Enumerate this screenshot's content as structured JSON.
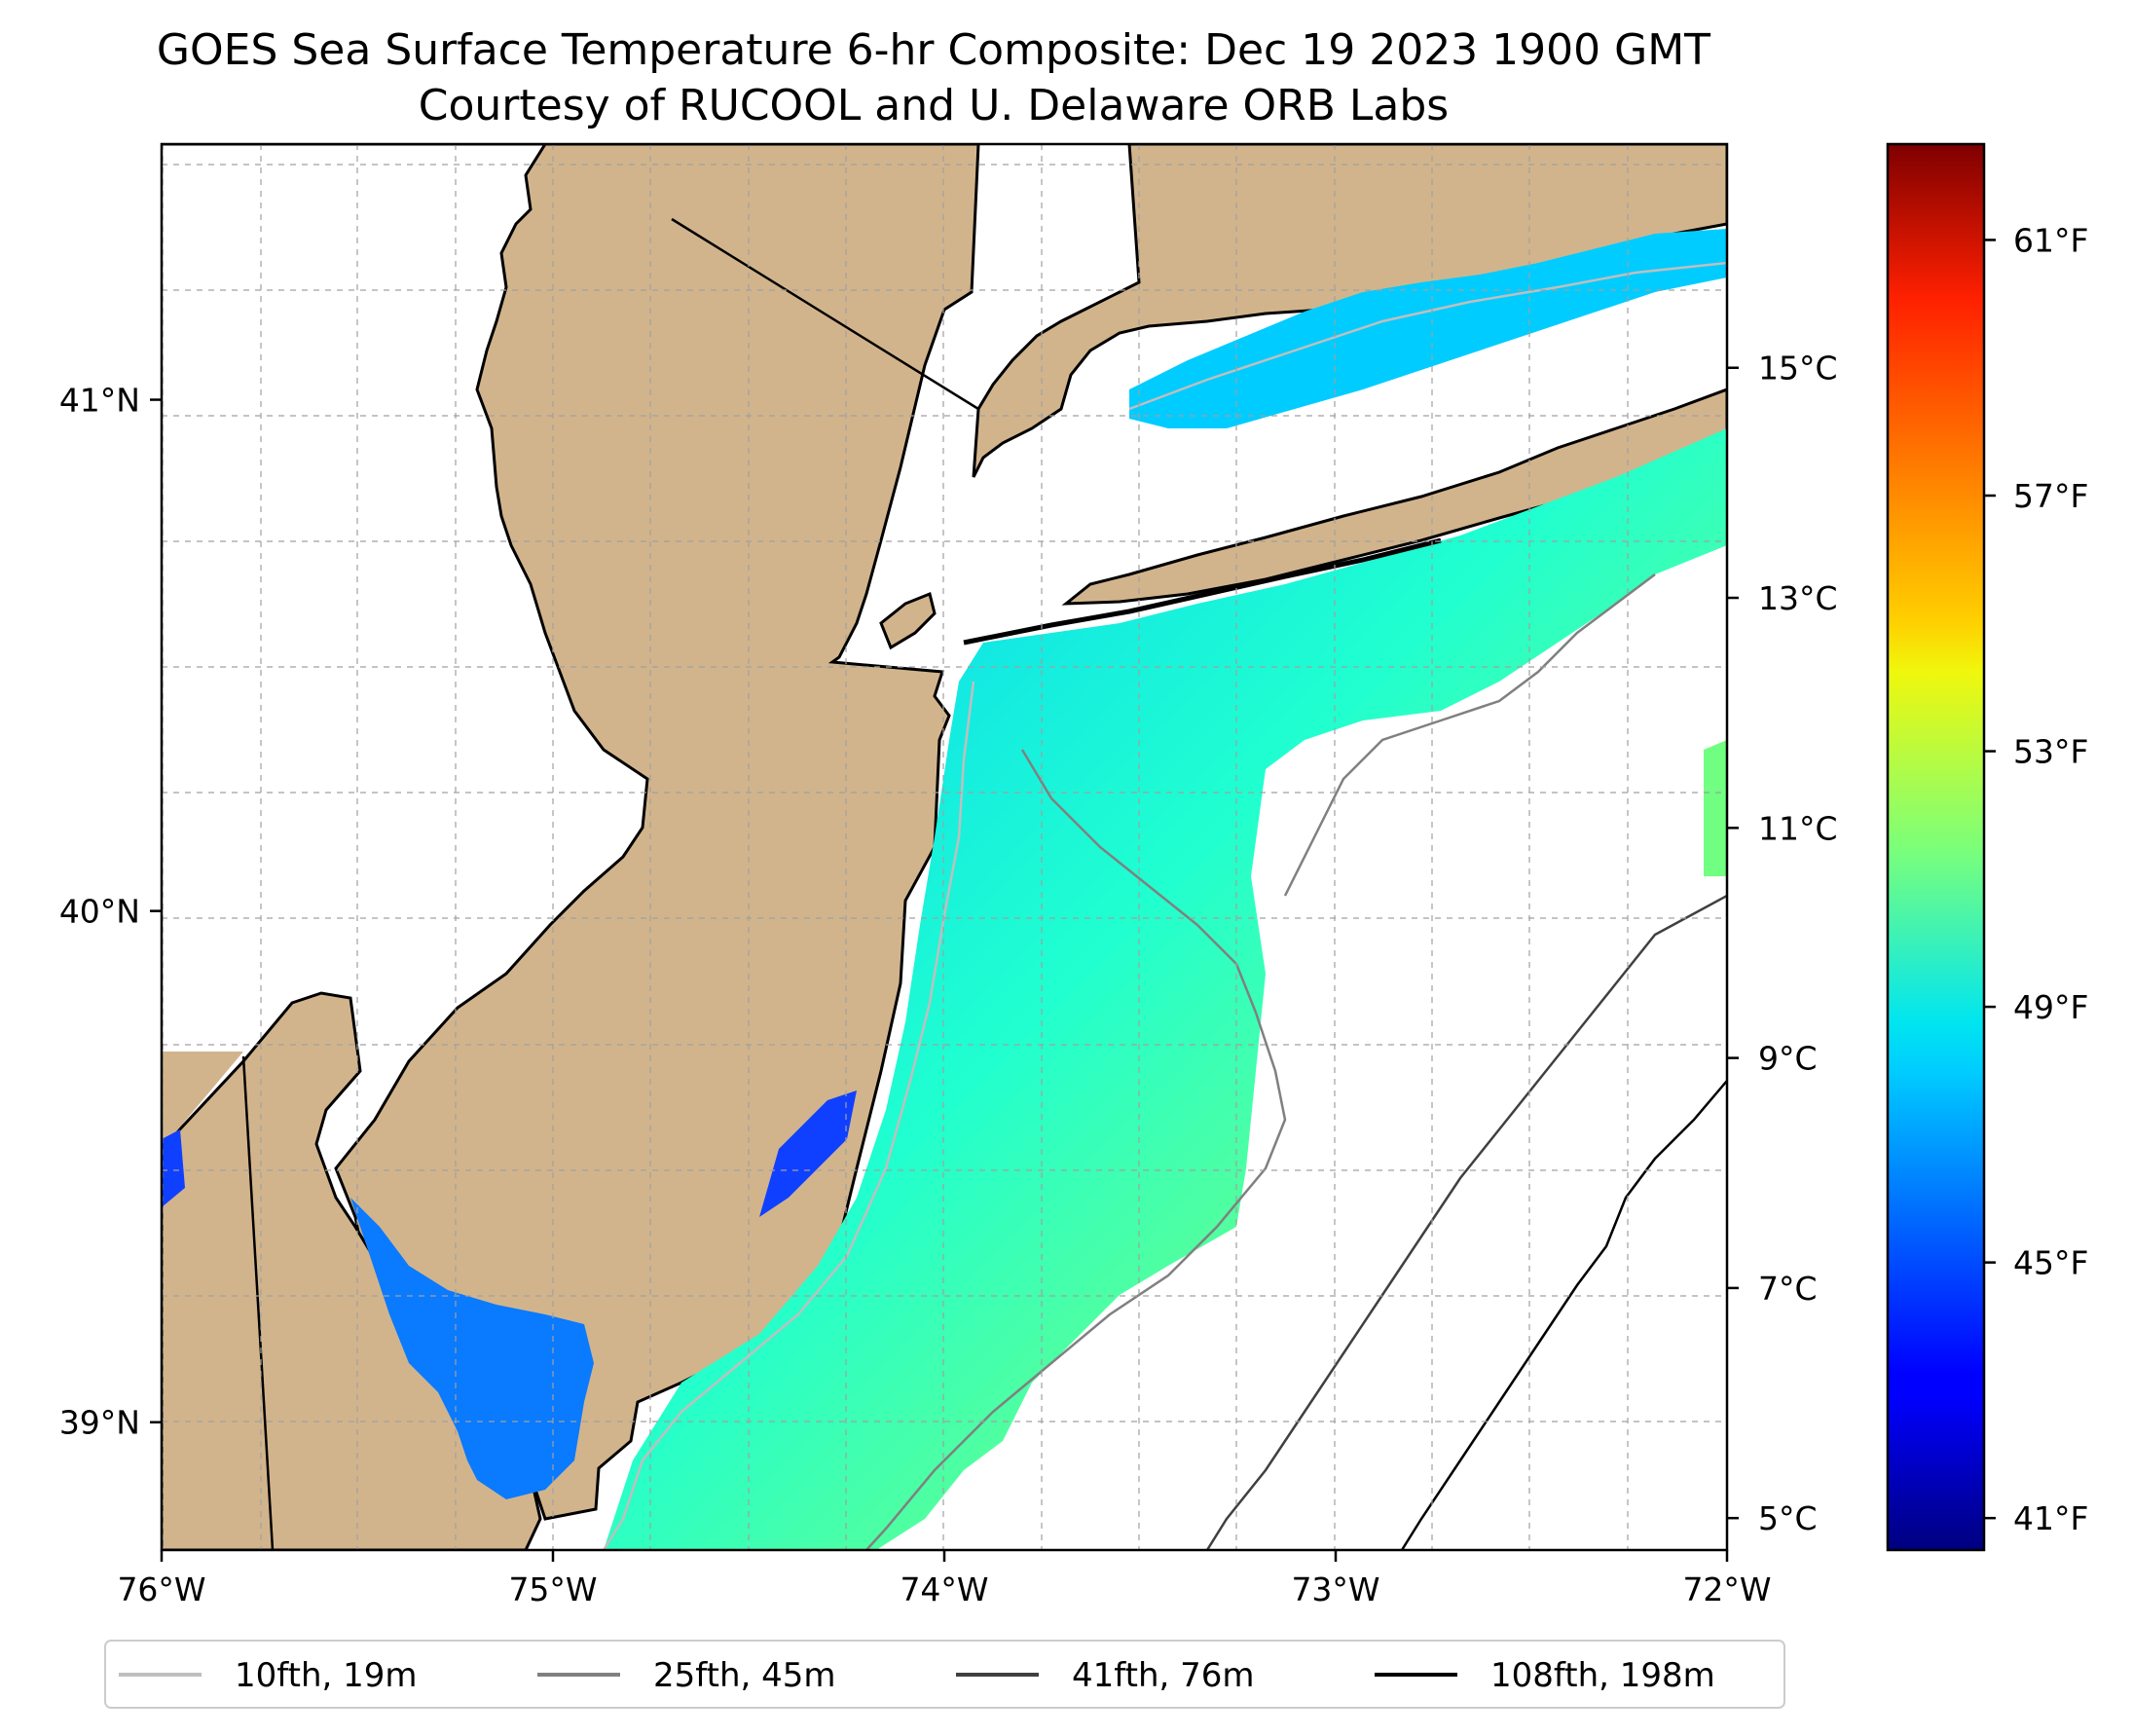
{
  "title": {
    "line1": "GOES Sea Surface Temperature 6-hr Composite: Dec 19 2023 1900 GMT",
    "line2": "Courtesy of RUCOOL and U. Delaware ORB Labs"
  },
  "map": {
    "lon_range": [
      -76,
      -72
    ],
    "lat_range": [
      38.75,
      41.5
    ],
    "x_ticks": [
      {
        "value": -76,
        "label": "76°W"
      },
      {
        "value": -75,
        "label": "75°W"
      },
      {
        "value": -74,
        "label": "74°W"
      },
      {
        "value": -73,
        "label": "73°W"
      },
      {
        "value": -72,
        "label": "72°W"
      }
    ],
    "y_ticks": [
      {
        "value": 39,
        "label": "39°N"
      },
      {
        "value": 40,
        "label": "40°N"
      },
      {
        "value": 41,
        "label": "41°N"
      }
    ],
    "land_color": "#d2b48c",
    "grid": "dashed"
  },
  "colorbar": {
    "colormap": "jet",
    "range_f": [
      40.5,
      62.5
    ],
    "celsius_ticks": [
      {
        "value": 5,
        "label": "5°C"
      },
      {
        "value": 7,
        "label": "7°C"
      },
      {
        "value": 9,
        "label": "9°C"
      },
      {
        "value": 11,
        "label": "11°C"
      },
      {
        "value": 13,
        "label": "13°C"
      },
      {
        "value": 15,
        "label": "15°C"
      }
    ],
    "fahrenheit_ticks": [
      {
        "value": 41,
        "label": "41°F"
      },
      {
        "value": 45,
        "label": "45°F"
      },
      {
        "value": 49,
        "label": "49°F"
      },
      {
        "value": 53,
        "label": "53°F"
      },
      {
        "value": 57,
        "label": "57°F"
      },
      {
        "value": 61,
        "label": "61°F"
      }
    ]
  },
  "legend": {
    "placement": "bottom",
    "items": [
      {
        "label": "10fth, 19m",
        "color": "#bfbfbf"
      },
      {
        "label": "25fth, 45m",
        "color": "#808080"
      },
      {
        "label": "41fth, 76m",
        "color": "#404040"
      },
      {
        "label": "108fth, 198m",
        "color": "#000000"
      }
    ]
  }
}
